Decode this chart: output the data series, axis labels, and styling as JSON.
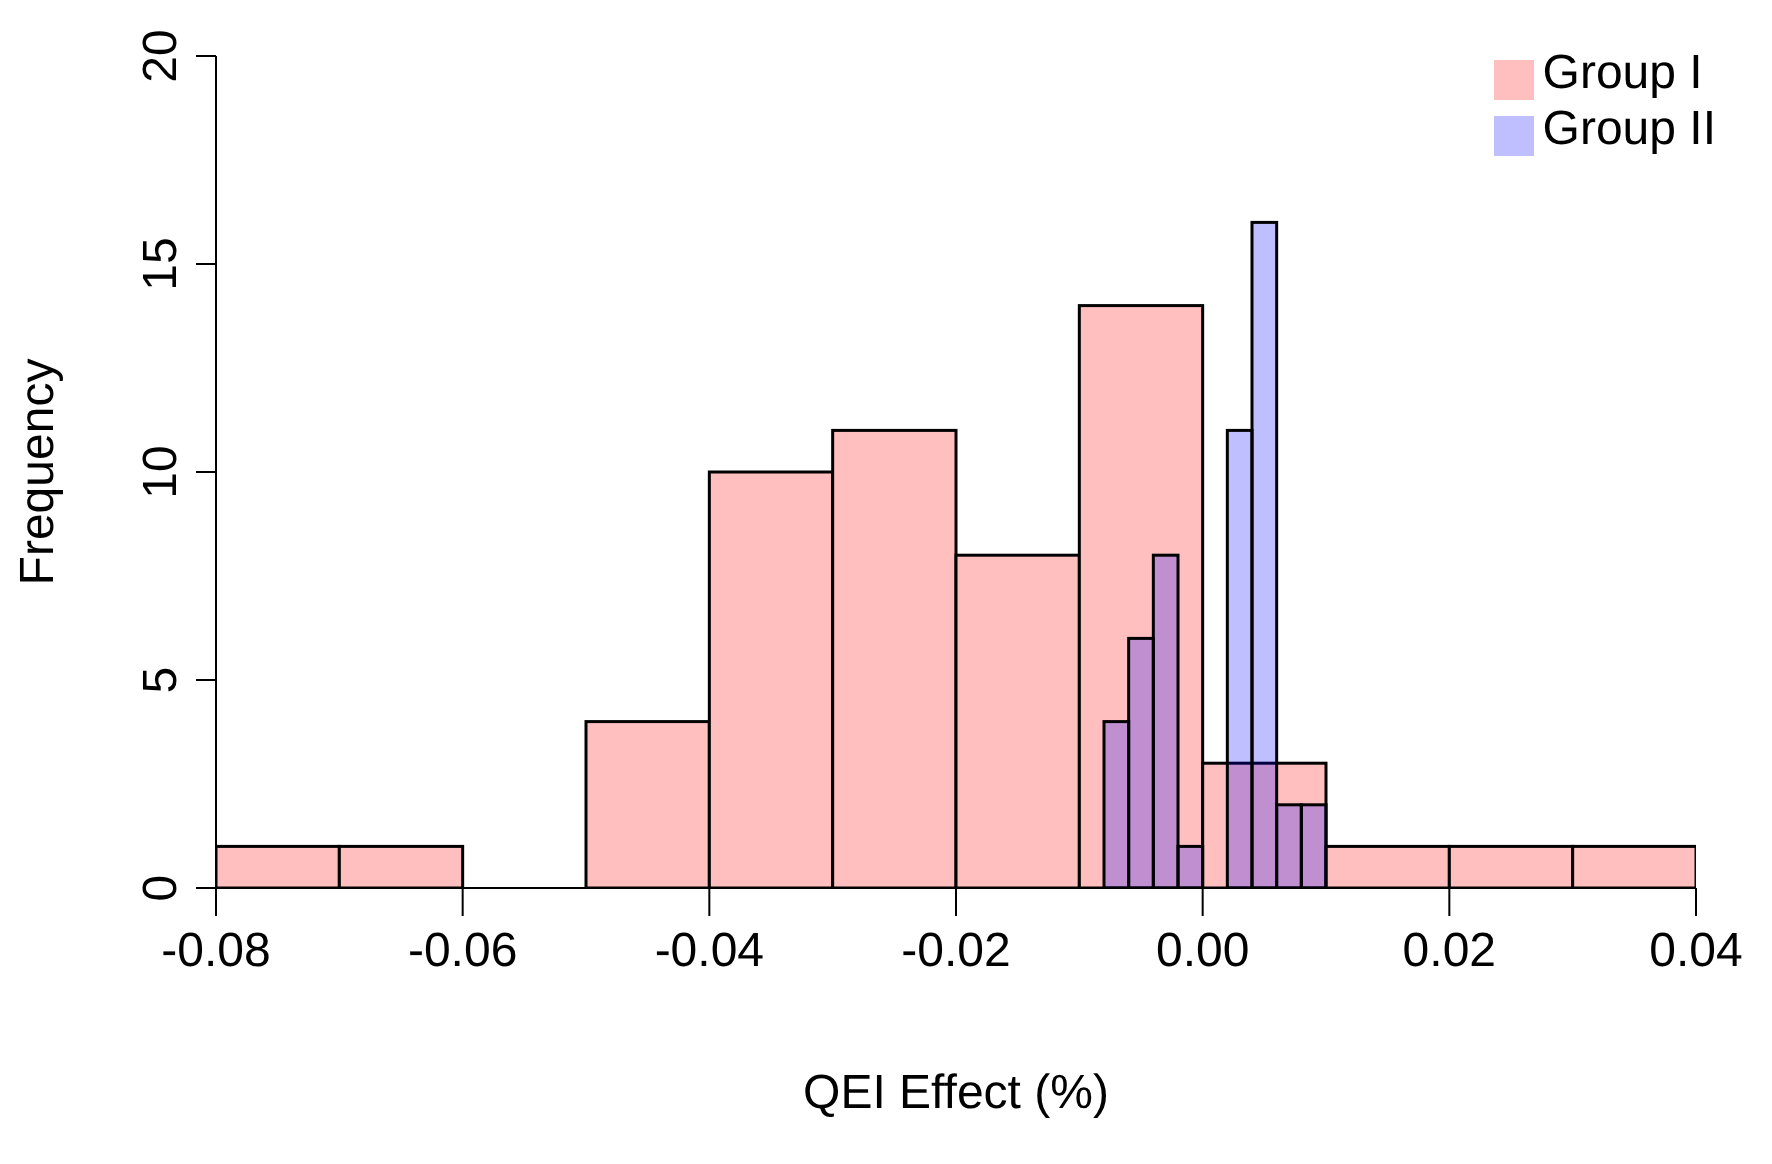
{
  "chart_data": {
    "type": "histogram",
    "xlabel": "QEI Effect (%)",
    "ylabel": "Frequency",
    "bins": [
      -0.08,
      -0.07,
      -0.06,
      -0.05,
      -0.04,
      -0.03,
      -0.02,
      -0.01,
      0,
      0.01,
      0.02,
      0.03,
      0.04
    ],
    "series": [
      {
        "name": "Group I",
        "color": "#ffbfbf",
        "values": [
          1,
          1,
          0,
          4,
          10,
          11,
          8,
          14,
          3,
          1,
          1,
          1
        ]
      },
      {
        "name": "Group II",
        "color": "#bfbfff",
        "bins": [
          -0.008,
          -0.006,
          -0.004,
          -0.002,
          0,
          0.002,
          0.004,
          0.006,
          0.008,
          0.01
        ],
        "values": [
          4,
          6,
          8,
          1,
          0,
          11,
          16,
          2,
          2
        ]
      }
    ],
    "xlim": [
      -0.08,
      0.04
    ],
    "xticks": [
      -0.08,
      -0.06,
      -0.04,
      -0.02,
      {
        "value": 0,
        "label": "0.00"
      },
      0.02,
      0.04
    ],
    "ylim": [
      0,
      20
    ],
    "yticks": [
      0,
      5,
      10,
      15,
      20
    ],
    "grid": false,
    "legend": "top right"
  }
}
